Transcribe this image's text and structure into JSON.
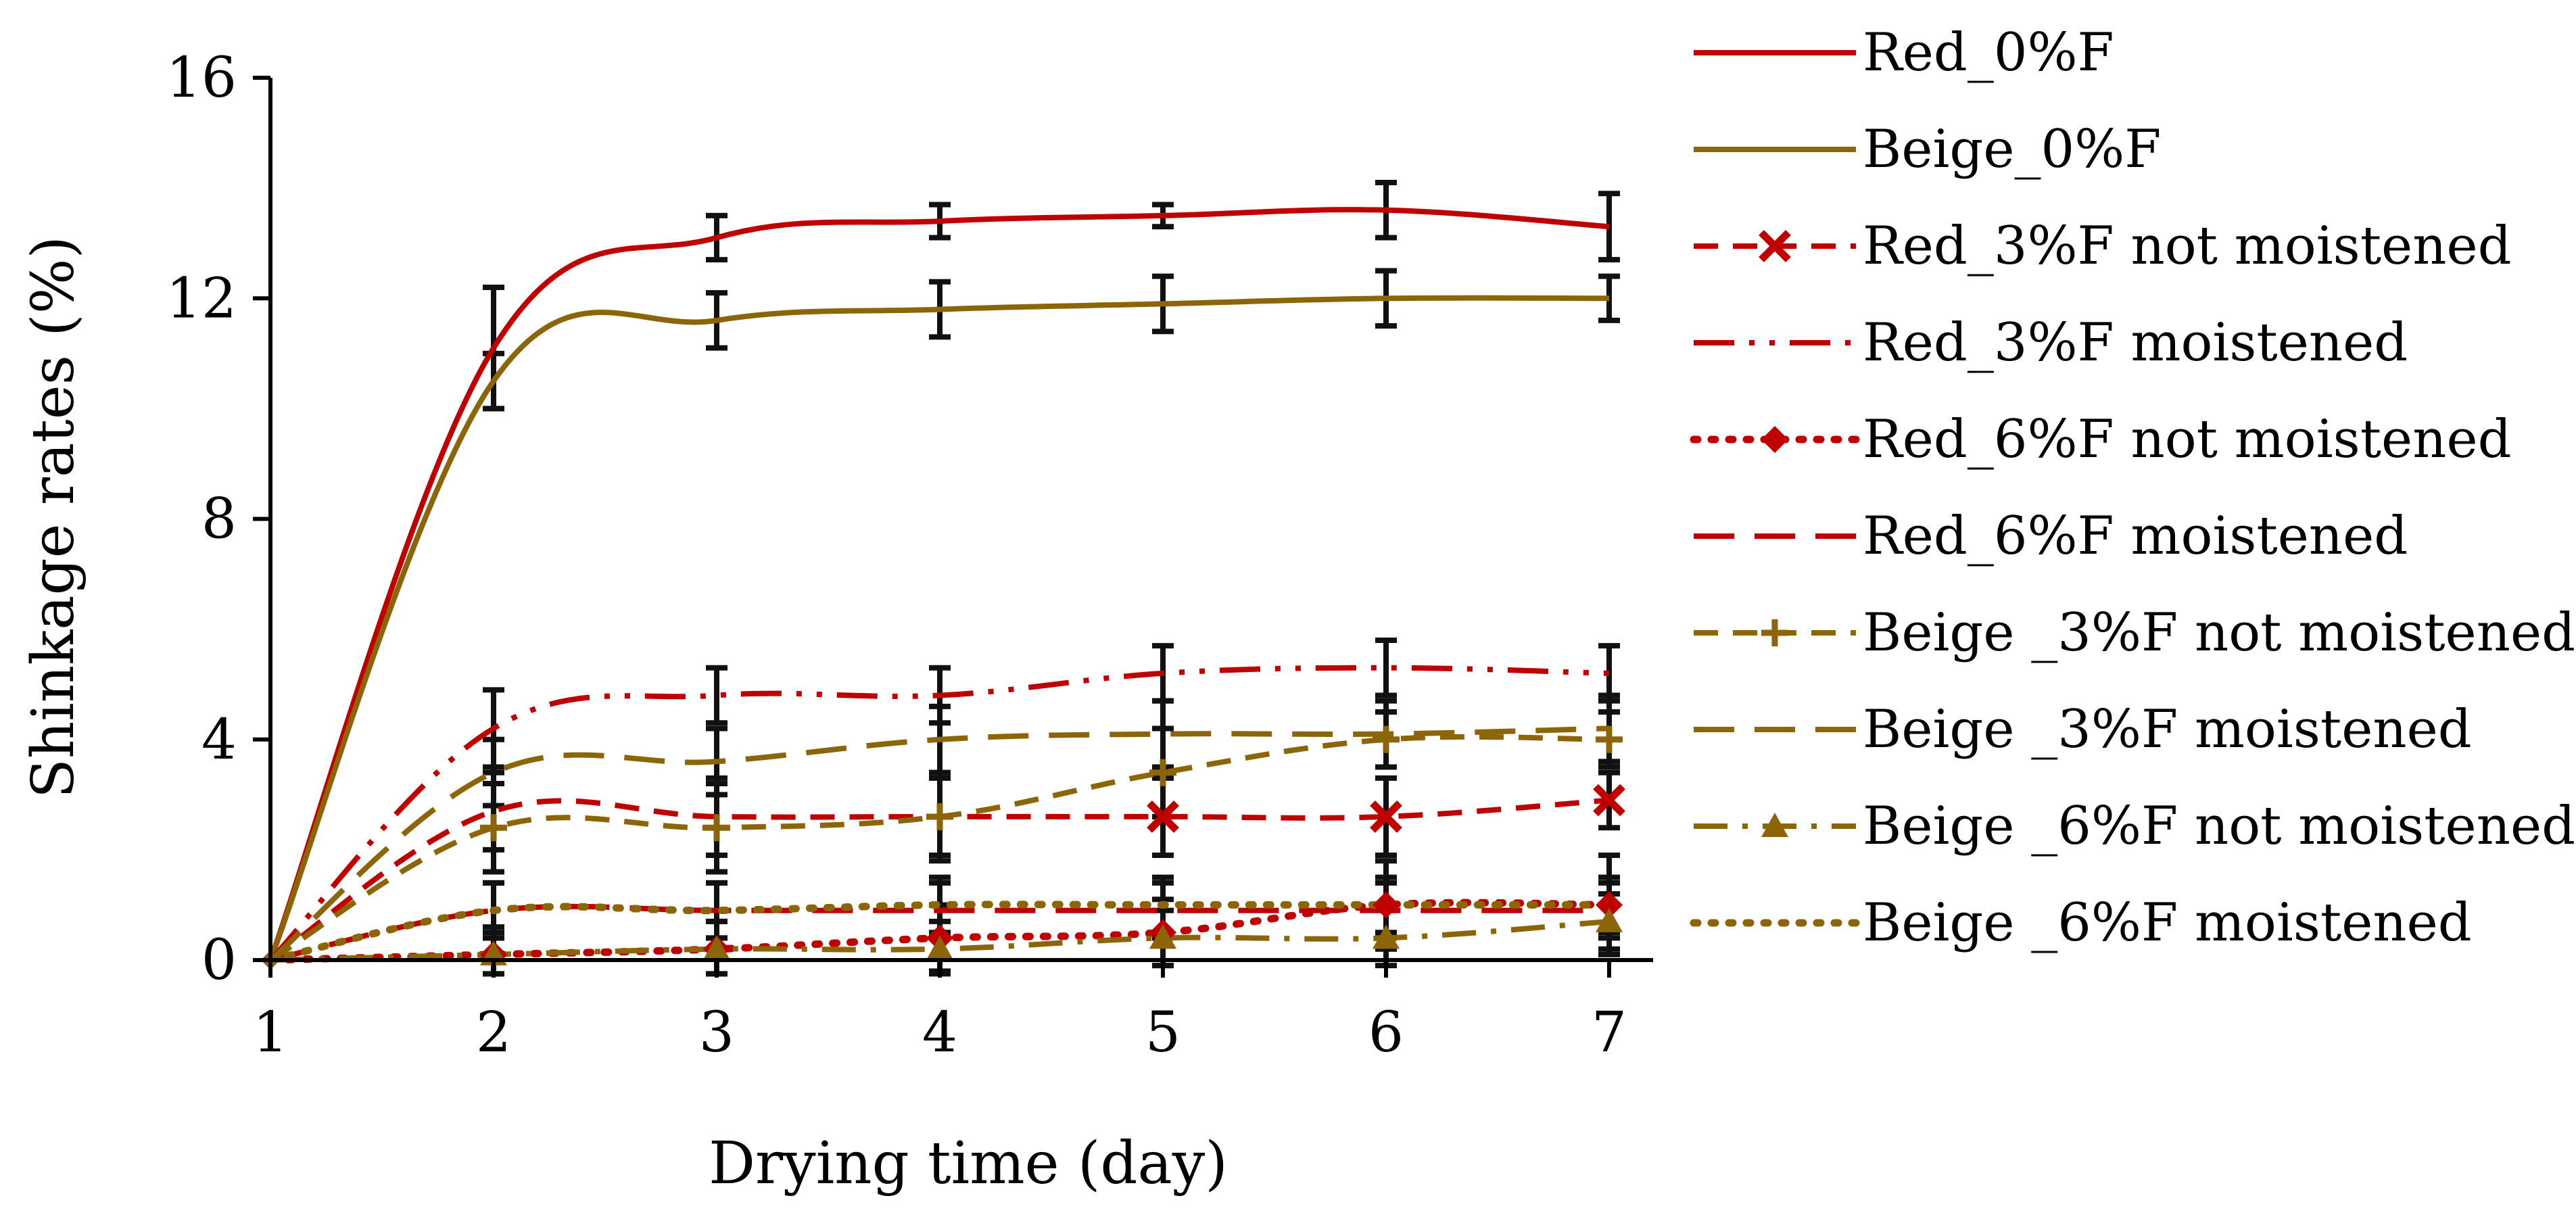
{
  "chart_data": {
    "type": "line",
    "title": "",
    "xlabel": "Drying time (day)",
    "ylabel": "Shinkage rates (%)",
    "x": [
      1,
      2,
      3,
      4,
      5,
      6,
      7
    ],
    "x_ticks": [
      "1",
      "2",
      "3",
      "4",
      "5",
      "6",
      "7"
    ],
    "y_ticks": [
      "0",
      "4",
      "8",
      "12",
      "16"
    ],
    "xlim": [
      1,
      7
    ],
    "ylim": [
      0,
      16
    ],
    "grid": false,
    "legend_position": "right",
    "series": [
      {
        "name": "Red_0%F",
        "color": "#c00000",
        "line": "solid",
        "marker": "none",
        "values": [
          0,
          11.1,
          13.1,
          13.4,
          13.5,
          13.6,
          13.3
        ],
        "errors": [
          0,
          1.1,
          0.4,
          0.3,
          0.2,
          0.5,
          0.6
        ]
      },
      {
        "name": "Beige_0%F",
        "color": "#8b6508",
        "line": "solid",
        "marker": "none",
        "values": [
          0,
          10.5,
          11.6,
          11.8,
          11.9,
          12.0,
          12.0
        ],
        "errors": [
          0,
          0.5,
          0.5,
          0.5,
          0.5,
          0.5,
          0.4
        ]
      },
      {
        "name": "Red_3%F not moistened",
        "color": "#c00000",
        "line": "dash",
        "marker": "x",
        "values": [
          0,
          2.7,
          2.6,
          2.6,
          2.6,
          2.6,
          2.9
        ],
        "errors": [
          0,
          0.7,
          0.7,
          0.7,
          0.7,
          0.7,
          0.5
        ]
      },
      {
        "name": "Red_3%F moistened",
        "color": "#c00000",
        "line": "dashdotdot",
        "marker": "none",
        "values": [
          0,
          4.2,
          4.8,
          4.8,
          5.2,
          5.3,
          5.2
        ],
        "errors": [
          0,
          0.7,
          0.5,
          0.5,
          0.5,
          0.5,
          0.5
        ]
      },
      {
        "name": "Red_6%F not moistened",
        "color": "#c00000",
        "line": "dot",
        "marker": "diamond",
        "values": [
          0,
          0.1,
          0.2,
          0.4,
          0.5,
          1.0,
          1.0
        ],
        "errors": [
          0,
          0.4,
          0.5,
          0.6,
          0.6,
          0.8,
          0.9
        ]
      },
      {
        "name": "Red_6%F moistened",
        "color": "#c00000",
        "line": "longdash",
        "marker": "none",
        "values": [
          0,
          0.9,
          0.9,
          0.9,
          0.9,
          0.9,
          0.9
        ],
        "errors": [
          0,
          0.5,
          0.5,
          0.5,
          0.5,
          0.5,
          0.5
        ]
      },
      {
        "name": "Beige _3%F not moistened",
        "color": "#8b6508",
        "line": "dash",
        "marker": "plus",
        "values": [
          0,
          2.4,
          2.4,
          2.6,
          3.4,
          4.0,
          4.0
        ],
        "errors": [
          0,
          0.8,
          0.8,
          0.8,
          0.8,
          0.5,
          0.5
        ]
      },
      {
        "name": "Beige _3%F moistened",
        "color": "#8b6508",
        "line": "longdash",
        "marker": "none",
        "values": [
          0,
          3.4,
          3.6,
          4.0,
          4.1,
          4.1,
          4.2
        ],
        "errors": [
          0,
          0.6,
          0.6,
          0.6,
          0.6,
          0.6,
          0.6
        ]
      },
      {
        "name": "Beige _6%F not moistened",
        "color": "#8b6508",
        "line": "dashdot",
        "marker": "triangle",
        "values": [
          0,
          0.1,
          0.2,
          0.2,
          0.4,
          0.4,
          0.7
        ],
        "errors": [
          0,
          0.5,
          0.5,
          0.5,
          0.5,
          0.5,
          0.5
        ]
      },
      {
        "name": "Beige _6%F moistened",
        "color": "#8b6508",
        "line": "dot",
        "marker": "none",
        "values": [
          0,
          0.9,
          0.9,
          1.0,
          1.0,
          1.0,
          1.0
        ],
        "errors": [
          0,
          0.5,
          0.5,
          0.5,
          0.5,
          0.5,
          0.5
        ]
      }
    ]
  }
}
